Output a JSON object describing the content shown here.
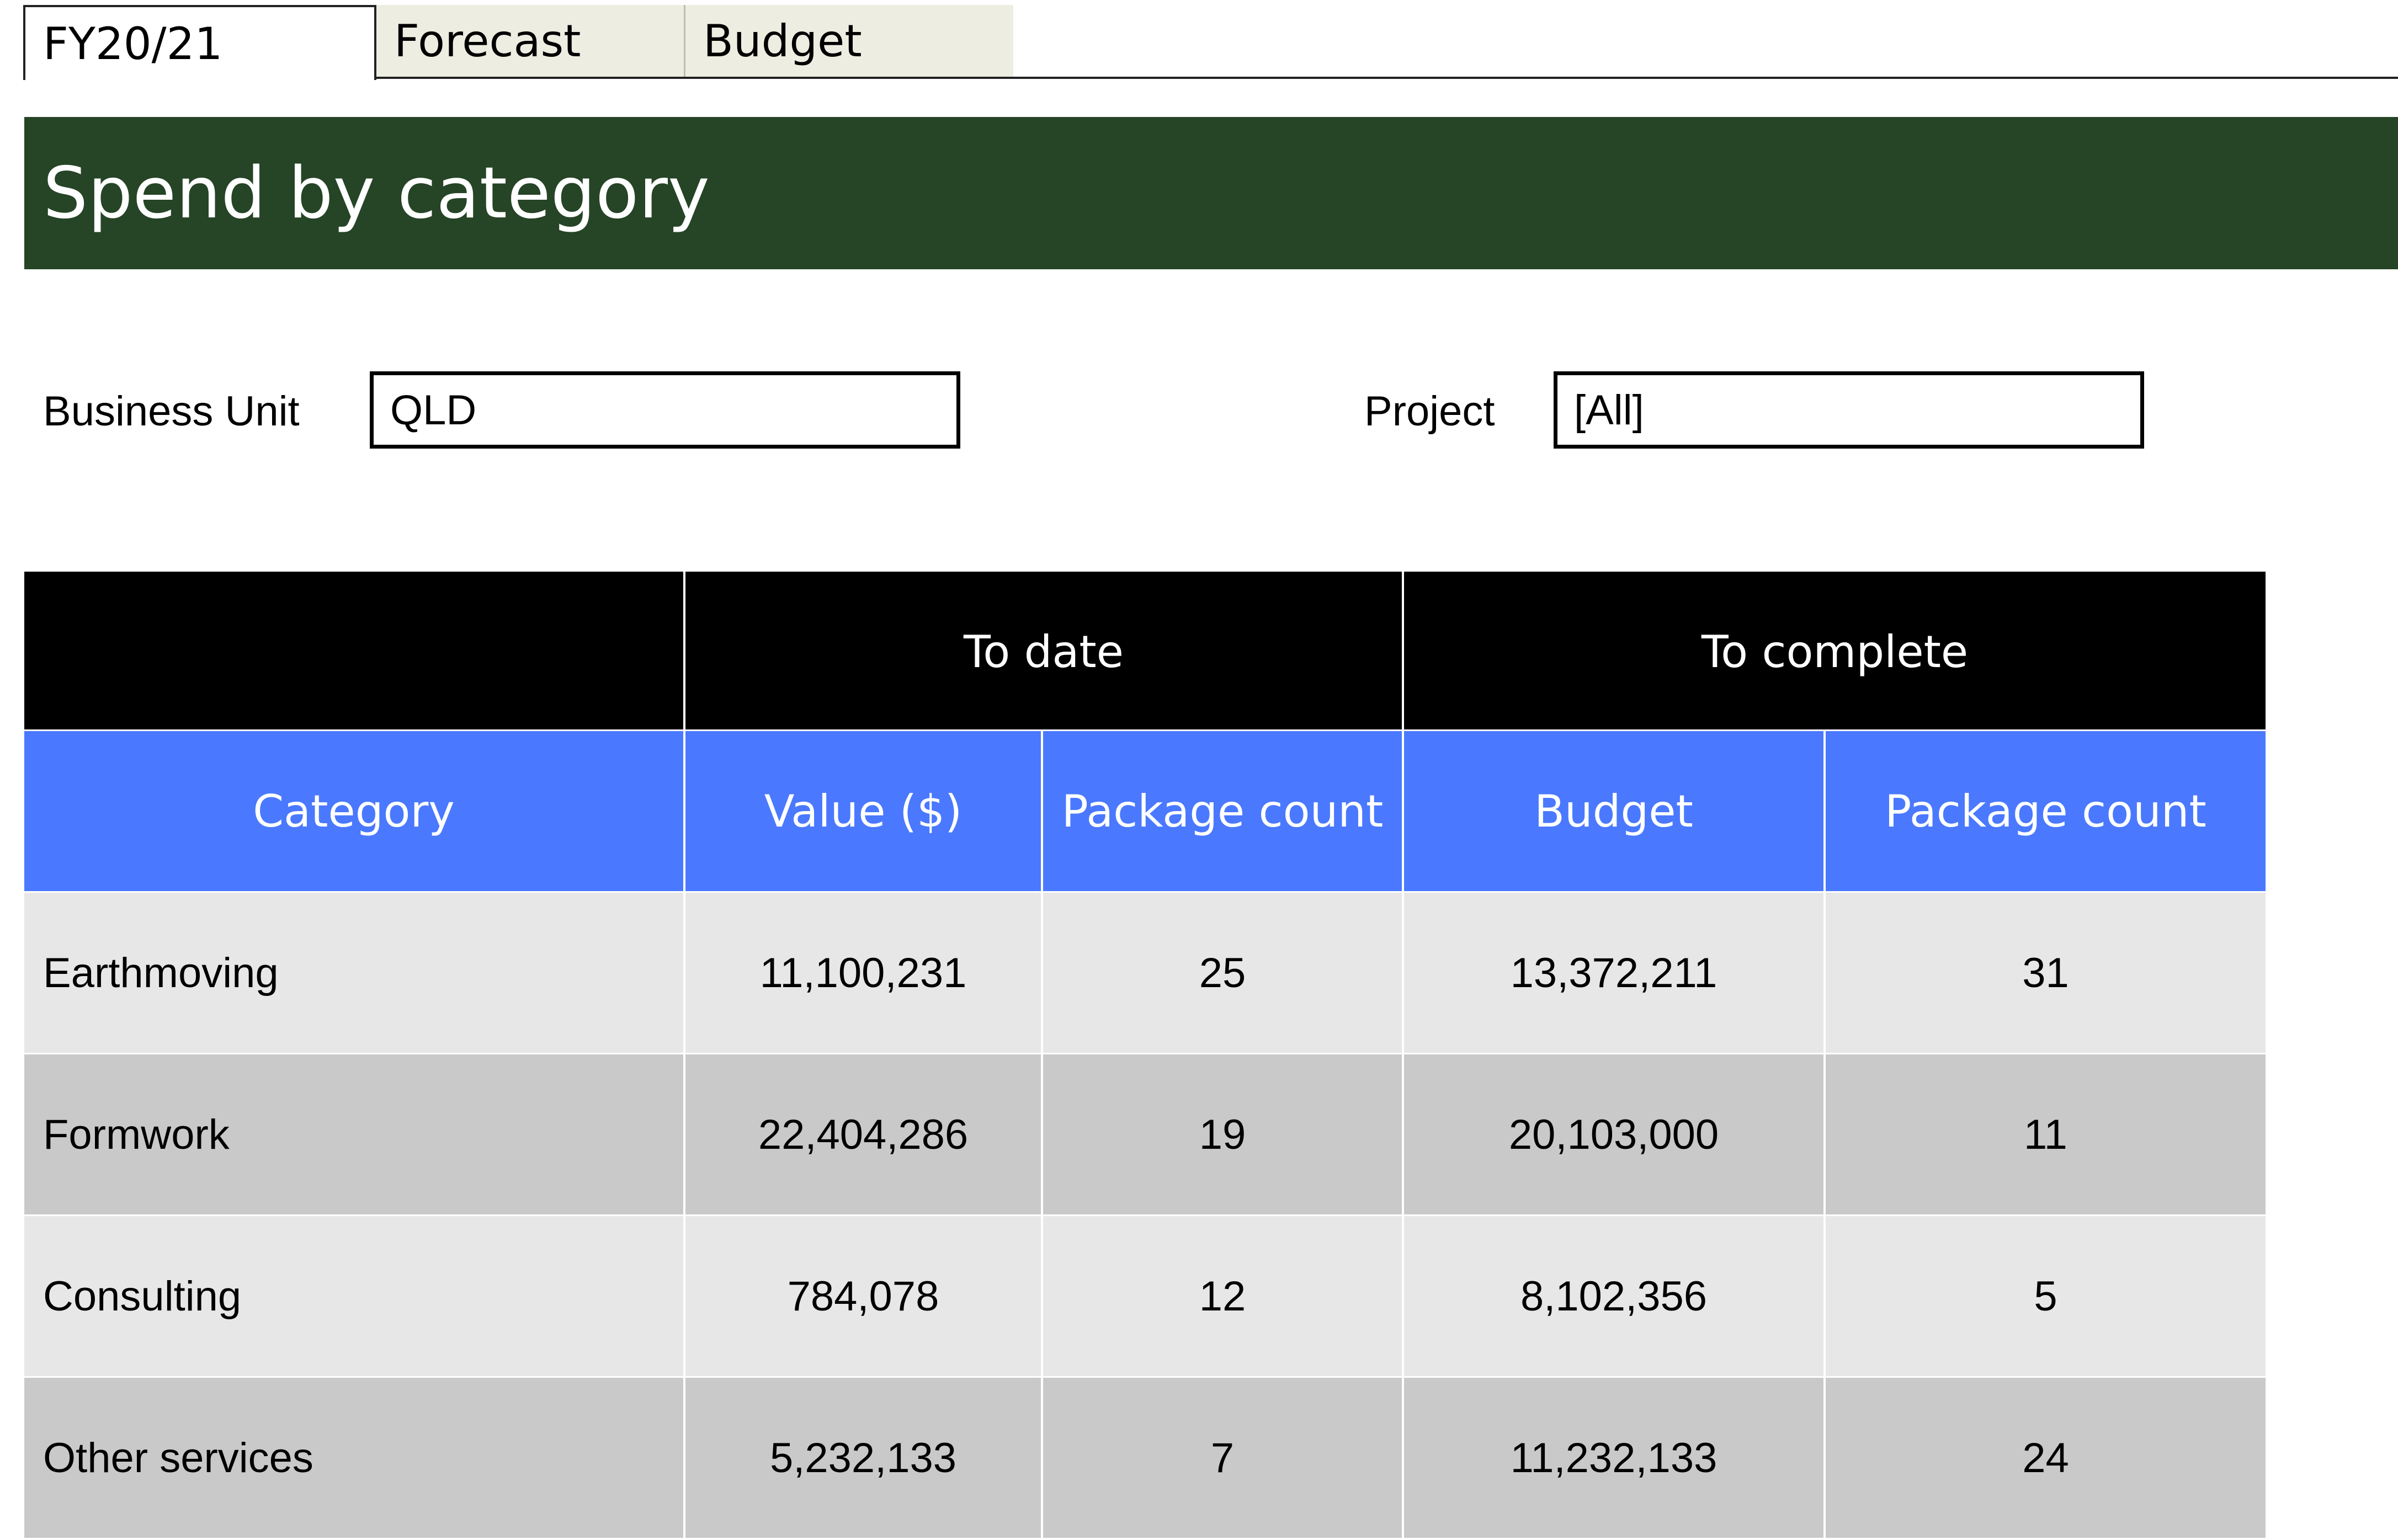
{
  "tabs": [
    {
      "label": "FY20/21",
      "active": true
    },
    {
      "label": "Forecast",
      "active": false
    },
    {
      "label": "Budget",
      "active": false
    }
  ],
  "title": "Spend by category",
  "filters": {
    "business_unit": {
      "label": "Business Unit",
      "value": "QLD"
    },
    "project": {
      "label": "Project",
      "value": "[All]"
    }
  },
  "table": {
    "group_headers": {
      "corner": "",
      "to_date": "To date",
      "to_complete": "To complete"
    },
    "columns": [
      "Category",
      "Value ($)",
      "Package count",
      "Budget",
      "Package count"
    ],
    "rows": [
      [
        "Earthmoving",
        "11,100,231",
        "25",
        "13,372,211",
        "31"
      ],
      [
        "Formwork",
        "22,404,286",
        "19",
        "20,103,000",
        "11"
      ],
      [
        "Consulting",
        "784,078",
        "12",
        "8,102,356",
        "5"
      ],
      [
        "Other services",
        "5,232,133",
        "7",
        "11,232,133",
        "24"
      ]
    ]
  },
  "colors": {
    "banner": "#264426",
    "group_header": "#000000",
    "column_header": "#4a79ff",
    "row_light": "#e7e7e7",
    "row_dark": "#c9c9c9",
    "tab_inactive": "#eeede1"
  }
}
